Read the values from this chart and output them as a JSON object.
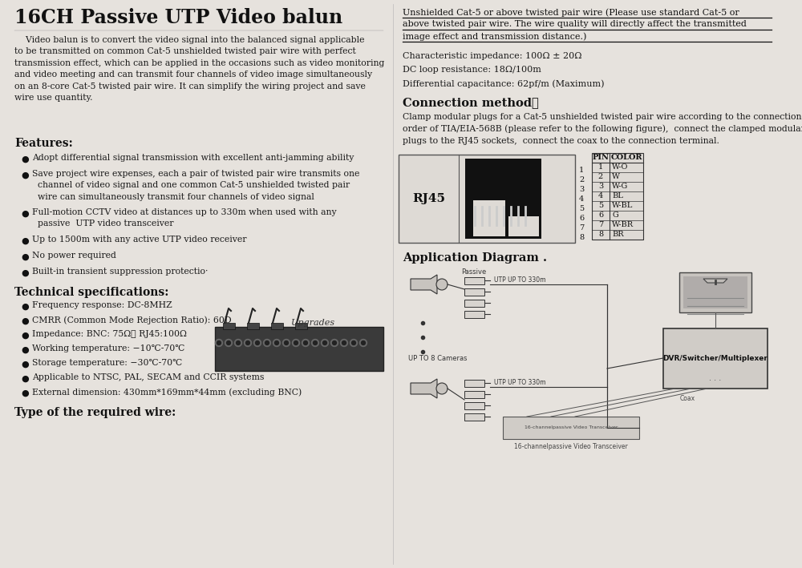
{
  "bg_color": "#e6e2dd",
  "title": "16CH Passive UTP Video balun",
  "intro": "    Video balun is to convert the video signal into the balanced signal applicable\nto be transmitted on common Cat-5 unshielded twisted pair wire with perfect\ntransmission effect, which can be applied in the occasions such as video monitoring\nand video meeting and can transmit four channels of video image simultaneously\non an 8-core Cat-5 twisted pair wire. It can simplify the wiring project and save\nwire use quantity.",
  "features_title": "Features:",
  "features": [
    "Adopt differential signal transmission with excellent anti-jamming ability",
    "Save project wire expenses, each a pair of twisted pair wire transmits one\n  channel of video signal and one common Cat-5 unshielded twisted pair\n  wire can simultaneously transmit four channels of video signal",
    "Full-motion CCTV video at distances up to 330m when used with any\n  passive  UTP video transceiver",
    "Up to 1500m with any active UTP video receiver",
    "No power required",
    "Built-in transient suppression protectio·"
  ],
  "tech_title": "Technical specifications:",
  "tech_specs": [
    "Frequency response: DC-8MHZ",
    "CMRR (Common Mode Rejection Ratio): 60D",
    "Impedance: BNC: 75Ω； RJ45:100Ω",
    "Working temperature: −10℃-70℃",
    "Storage temperature: −30℃-70℃",
    "Applicable to NTSC, PAL, SECAM and CCIR systems",
    "External dimension: 430mm*169mm*44mm (excluding BNC)"
  ],
  "wire_title": "Type of the required wire:",
  "right_underline_lines": [
    "Unshielded Cat-5 or above twisted pair wire (Please use standard Cat-5 or",
    "above twisted pair wire. The wire quality will directly affect the transmitted",
    "image effect and transmission distance.)"
  ],
  "char_imp": "Characteristic impedance: 100Ω ± 20Ω",
  "dc_loop": "DC loop resistance: 18Ω/100m",
  "diff_cap": "Differential capacitance: 62pf/m (Maximum)",
  "conn_title": "Connection method：",
  "conn_text": "Clamp modular plugs for a Cat-5 unshielded twisted pair wire according to the connection\norder of TIA/EIA-568B (please refer to the following figure),  connect the clamped modular\nplugs to the RJ45 sockets,  connect the coax to the connection terminal.",
  "app_title": "Application Diagram .",
  "pin_colors": [
    [
      1,
      "W-O"
    ],
    [
      2,
      "W"
    ],
    [
      3,
      "W-G"
    ],
    [
      4,
      "BL"
    ],
    [
      5,
      "W-BL"
    ],
    [
      6,
      "G"
    ],
    [
      7,
      "W-BR"
    ],
    [
      8,
      "BR"
    ]
  ],
  "upgrades_label": "Upgrades"
}
